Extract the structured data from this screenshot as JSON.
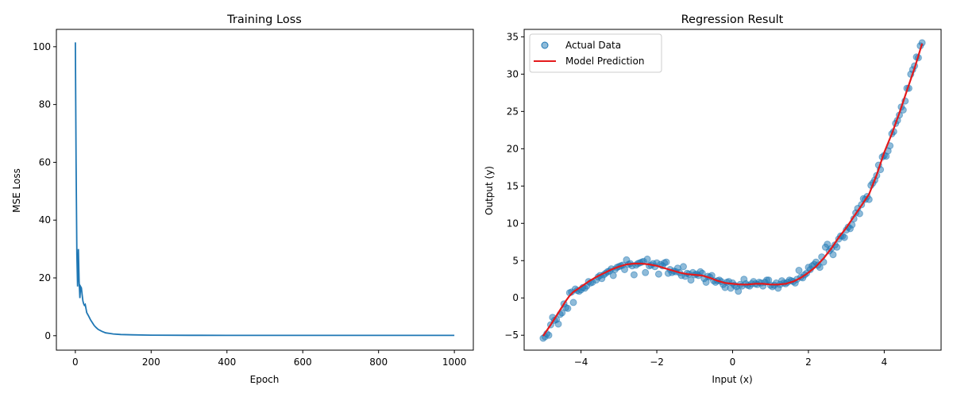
{
  "chart_data": [
    {
      "type": "line",
      "title": "Training Loss",
      "xlabel": "Epoch",
      "ylabel": "MSE Loss",
      "xlim": [
        -50,
        1050
      ],
      "ylim": [
        -5,
        106
      ],
      "xticks": [
        0,
        200,
        400,
        600,
        800,
        1000
      ],
      "yticks": [
        0,
        20,
        40,
        60,
        80,
        100
      ],
      "grid": false,
      "color": "#1f77b4",
      "series": [
        {
          "x": [
            0,
            2,
            4,
            6,
            8,
            10,
            12,
            14,
            16,
            18,
            20,
            22,
            24,
            26,
            28,
            30,
            35,
            40,
            45,
            50,
            55,
            60,
            70,
            80,
            90,
            100,
            120,
            150,
            200,
            300,
            400,
            500,
            600,
            700,
            800,
            900,
            1000
          ],
          "y": [
            101.5,
            60,
            28,
            17,
            30,
            19,
            13,
            17,
            16.5,
            14,
            12,
            11,
            10.5,
            10.8,
            9.5,
            8,
            6.8,
            5.5,
            4.5,
            3.5,
            2.8,
            2.2,
            1.5,
            1.0,
            0.8,
            0.6,
            0.4,
            0.3,
            0.2,
            0.15,
            0.12,
            0.1,
            0.1,
            0.1,
            0.1,
            0.1,
            0.1
          ]
        }
      ]
    },
    {
      "type": "scatter",
      "title": "Regression Result",
      "xlabel": "Input (x)",
      "ylabel": "Output (y)",
      "xlim": [
        -5.5,
        5.5
      ],
      "ylim": [
        -7,
        36
      ],
      "xticks": [
        -4,
        -2,
        0,
        2,
        4
      ],
      "xtick_labels": [
        "−4",
        "−2",
        "0",
        "2",
        "4"
      ],
      "yticks": [
        -5,
        0,
        5,
        10,
        15,
        20,
        25,
        30,
        35
      ],
      "yticks_labels": [
        "−5",
        "0",
        "5",
        "10",
        "15",
        "20",
        "25",
        "30",
        "35"
      ],
      "grid": false,
      "legend_position": "top-left",
      "series": [
        {
          "name": "Actual Data",
          "kind": "scatter",
          "color": "#1f77b4",
          "points": [
            [
              -5.0,
              -5.4
            ],
            [
              -4.95,
              -5.2
            ],
            [
              -4.9,
              -4.8
            ],
            [
              -4.85,
              -5.0
            ],
            [
              -4.8,
              -3.6
            ],
            [
              -4.75,
              -2.6
            ],
            [
              -4.7,
              -3.0
            ],
            [
              -4.65,
              -2.9
            ],
            [
              -4.6,
              -3.5
            ],
            [
              -4.55,
              -2.2
            ],
            [
              -4.5,
              -2.0
            ],
            [
              -4.45,
              -0.8
            ],
            [
              -4.4,
              -1.3
            ],
            [
              -4.35,
              -1.4
            ],
            [
              -4.3,
              0.7
            ],
            [
              -4.25,
              0.8
            ],
            [
              -4.2,
              -0.6
            ],
            [
              -4.15,
              1.2
            ],
            [
              -4.1,
              1.0
            ],
            [
              -4.05,
              0.9
            ],
            [
              -4.0,
              1.1
            ],
            [
              -3.95,
              1.4
            ],
            [
              -3.9,
              1.3
            ],
            [
              -3.85,
              1.6
            ],
            [
              -3.8,
              2.2
            ],
            [
              -3.75,
              2.0
            ],
            [
              -3.7,
              2.1
            ],
            [
              -3.6,
              2.4
            ],
            [
              -3.55,
              2.8
            ],
            [
              -3.5,
              3.0
            ],
            [
              -3.45,
              2.6
            ],
            [
              -3.4,
              3.1
            ],
            [
              -3.35,
              3.3
            ],
            [
              -3.3,
              3.5
            ],
            [
              -3.25,
              3.6
            ],
            [
              -3.2,
              3.9
            ],
            [
              -3.15,
              3.0
            ],
            [
              -3.1,
              3.8
            ],
            [
              -3.05,
              4.1
            ],
            [
              -3.0,
              4.2
            ],
            [
              -2.95,
              4.3
            ],
            [
              -2.9,
              4.4
            ],
            [
              -2.85,
              3.8
            ],
            [
              -2.8,
              5.1
            ],
            [
              -2.75,
              4.5
            ],
            [
              -2.7,
              4.6
            ],
            [
              -2.65,
              4.3
            ],
            [
              -2.6,
              3.1
            ],
            [
              -2.55,
              4.4
            ],
            [
              -2.5,
              4.6
            ],
            [
              -2.45,
              4.7
            ],
            [
              -2.4,
              4.8
            ],
            [
              -2.35,
              4.9
            ],
            [
              -2.3,
              3.4
            ],
            [
              -2.25,
              5.2
            ],
            [
              -2.2,
              4.3
            ],
            [
              -2.15,
              4.4
            ],
            [
              -2.1,
              4.6
            ],
            [
              -2.05,
              4.2
            ],
            [
              -2.0,
              4.7
            ],
            [
              -1.95,
              3.2
            ],
            [
              -1.9,
              4.5
            ],
            [
              -1.85,
              4.3
            ],
            [
              -1.8,
              4.7
            ],
            [
              -1.75,
              4.8
            ],
            [
              -1.7,
              3.3
            ],
            [
              -1.65,
              3.8
            ],
            [
              -1.6,
              3.4
            ],
            [
              -1.55,
              3.6
            ],
            [
              -1.5,
              3.5
            ],
            [
              -1.45,
              4.0
            ],
            [
              -1.4,
              3.4
            ],
            [
              -1.35,
              3.0
            ],
            [
              -1.3,
              4.2
            ],
            [
              -1.25,
              2.9
            ],
            [
              -1.2,
              3.3
            ],
            [
              -1.15,
              3.2
            ],
            [
              -1.1,
              2.4
            ],
            [
              -1.05,
              3.4
            ],
            [
              -1.0,
              3.1
            ],
            [
              -0.95,
              3.2
            ],
            [
              -0.9,
              3.0
            ],
            [
              -0.85,
              3.5
            ],
            [
              -0.8,
              3.3
            ],
            [
              -0.75,
              2.6
            ],
            [
              -0.7,
              2.1
            ],
            [
              -0.65,
              2.9
            ],
            [
              -0.6,
              2.8
            ],
            [
              -0.55,
              3.0
            ],
            [
              -0.5,
              2.3
            ],
            [
              -0.45,
              2.1
            ],
            [
              -0.4,
              2.3
            ],
            [
              -0.35,
              2.4
            ],
            [
              -0.3,
              2.2
            ],
            [
              -0.25,
              1.8
            ],
            [
              -0.2,
              1.4
            ],
            [
              -0.15,
              2.1
            ],
            [
              -0.1,
              2.2
            ],
            [
              -0.05,
              1.3
            ],
            [
              0.0,
              2.0
            ],
            [
              0.05,
              1.7
            ],
            [
              0.1,
              1.5
            ],
            [
              0.15,
              0.9
            ],
            [
              0.2,
              1.8
            ],
            [
              0.25,
              1.6
            ],
            [
              0.3,
              2.5
            ],
            [
              0.35,
              1.9
            ],
            [
              0.4,
              1.7
            ],
            [
              0.45,
              1.6
            ],
            [
              0.5,
              1.9
            ],
            [
              0.55,
              2.2
            ],
            [
              0.6,
              1.9
            ],
            [
              0.65,
              1.8
            ],
            [
              0.7,
              2.1
            ],
            [
              0.75,
              2.0
            ],
            [
              0.8,
              1.6
            ],
            [
              0.85,
              2.1
            ],
            [
              0.9,
              2.4
            ],
            [
              0.95,
              2.4
            ],
            [
              1.0,
              1.7
            ],
            [
              1.05,
              1.5
            ],
            [
              1.1,
              1.7
            ],
            [
              1.15,
              2.0
            ],
            [
              1.2,
              1.3
            ],
            [
              1.25,
              1.8
            ],
            [
              1.3,
              2.3
            ],
            [
              1.35,
              2.0
            ],
            [
              1.4,
              1.9
            ],
            [
              1.45,
              2.1
            ],
            [
              1.5,
              2.4
            ],
            [
              1.55,
              2.3
            ],
            [
              1.6,
              2.2
            ],
            [
              1.65,
              2.0
            ],
            [
              1.7,
              2.5
            ],
            [
              1.75,
              3.7
            ],
            [
              1.8,
              2.8
            ],
            [
              1.85,
              2.7
            ],
            [
              1.9,
              3.1
            ],
            [
              1.95,
              3.3
            ],
            [
              2.0,
              4.1
            ],
            [
              2.05,
              3.8
            ],
            [
              2.1,
              4.3
            ],
            [
              2.15,
              4.5
            ],
            [
              2.2,
              4.8
            ],
            [
              2.25,
              4.4
            ],
            [
              2.3,
              4.1
            ],
            [
              2.35,
              5.5
            ],
            [
              2.4,
              4.8
            ],
            [
              2.45,
              6.8
            ],
            [
              2.5,
              7.2
            ],
            [
              2.55,
              6.3
            ],
            [
              2.6,
              6.6
            ],
            [
              2.65,
              5.8
            ],
            [
              2.7,
              7.1
            ],
            [
              2.75,
              6.8
            ],
            [
              2.8,
              7.9
            ],
            [
              2.85,
              8.3
            ],
            [
              2.9,
              8.3
            ],
            [
              2.95,
              8.1
            ],
            [
              3.0,
              9.1
            ],
            [
              3.05,
              9.5
            ],
            [
              3.1,
              9.3
            ],
            [
              3.15,
              9.8
            ],
            [
              3.2,
              10.6
            ],
            [
              3.25,
              11.4
            ],
            [
              3.3,
              12.0
            ],
            [
              3.35,
              11.3
            ],
            [
              3.4,
              12.5
            ],
            [
              3.45,
              13.3
            ],
            [
              3.5,
              13.2
            ],
            [
              3.55,
              13.6
            ],
            [
              3.6,
              13.2
            ],
            [
              3.65,
              15.1
            ],
            [
              3.7,
              15.4
            ],
            [
              3.75,
              15.8
            ],
            [
              3.8,
              16.4
            ],
            [
              3.85,
              17.8
            ],
            [
              3.9,
              17.2
            ],
            [
              3.95,
              18.9
            ],
            [
              4.0,
              19.1
            ],
            [
              4.05,
              19.0
            ],
            [
              4.1,
              19.7
            ],
            [
              4.15,
              20.4
            ],
            [
              4.2,
              22.0
            ],
            [
              4.25,
              22.3
            ],
            [
              4.3,
              23.4
            ],
            [
              4.35,
              23.8
            ],
            [
              4.4,
              24.5
            ],
            [
              4.45,
              25.6
            ],
            [
              4.5,
              25.2
            ],
            [
              4.55,
              26.4
            ],
            [
              4.6,
              28.1
            ],
            [
              4.65,
              28.1
            ],
            [
              4.7,
              30.0
            ],
            [
              4.75,
              30.6
            ],
            [
              4.8,
              31.1
            ],
            [
              4.85,
              32.3
            ],
            [
              4.9,
              32.2
            ],
            [
              4.95,
              33.8
            ],
            [
              5.0,
              34.2
            ]
          ]
        },
        {
          "name": "Model Prediction",
          "kind": "line",
          "color": "#e41a1c",
          "x": [
            -5.0,
            -4.8,
            -4.6,
            -4.4,
            -4.3,
            -4.2,
            -4.0,
            -3.8,
            -3.6,
            -3.4,
            -3.2,
            -3.0,
            -2.8,
            -2.6,
            -2.4,
            -2.2,
            -2.0,
            -1.8,
            -1.6,
            -1.4,
            -1.2,
            -1.0,
            -0.8,
            -0.6,
            -0.4,
            -0.2,
            0.0,
            0.2,
            0.4,
            0.6,
            0.8,
            1.0,
            1.2,
            1.4,
            1.6,
            1.8,
            2.0,
            2.2,
            2.4,
            2.6,
            2.8,
            3.0,
            3.2,
            3.4,
            3.6,
            3.8,
            4.0,
            4.2,
            4.4,
            4.6,
            4.8,
            5.0
          ],
          "y": [
            -5.1,
            -3.6,
            -2.0,
            -0.4,
            0.3,
            0.8,
            1.5,
            2.2,
            2.8,
            3.3,
            3.8,
            4.2,
            4.5,
            4.6,
            4.6,
            4.5,
            4.3,
            4.0,
            3.7,
            3.4,
            3.2,
            3.1,
            3.0,
            2.7,
            2.3,
            2.0,
            1.9,
            1.8,
            1.8,
            1.9,
            1.9,
            1.8,
            1.8,
            1.9,
            2.2,
            2.7,
            3.4,
            4.2,
            5.3,
            6.6,
            8.1,
            9.4,
            10.9,
            12.4,
            13.9,
            16.5,
            19.5,
            22.0,
            24.8,
            27.8,
            30.8,
            34.1
          ]
        }
      ]
    }
  ]
}
